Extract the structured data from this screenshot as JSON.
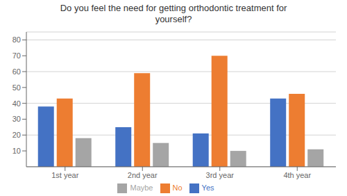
{
  "chart_data": {
    "type": "bar",
    "title": "Do you feel the need for getting orthodontic treatment for\nyourself?",
    "categories": [
      "1st year",
      "2nd year",
      "3rd year",
      "4th year"
    ],
    "series": [
      {
        "name": "Yes",
        "color": "#4472C4",
        "values": [
          38,
          25,
          21,
          43
        ]
      },
      {
        "name": "No",
        "color": "#ED7D31",
        "values": [
          43,
          59,
          70,
          46
        ]
      },
      {
        "name": "Maybe",
        "color": "#A5A5A5",
        "values": [
          18,
          15,
          10,
          11
        ]
      }
    ],
    "ylim": [
      0,
      85
    ],
    "yticks": [
      10,
      20,
      30,
      40,
      50,
      60,
      70,
      80
    ],
    "grid": true,
    "legend": "bottom"
  }
}
